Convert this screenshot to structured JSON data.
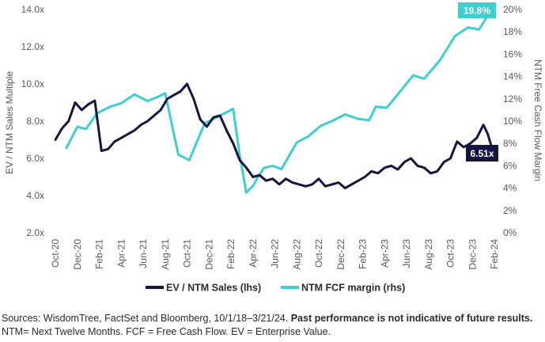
{
  "chart_data": {
    "type": "line",
    "ylabel_left": "EV / NTM Sales Multiple",
    "ylabel_right": "NTM Free Cash Flow Margin",
    "y_left": {
      "min": 2,
      "max": 14,
      "ticks": [
        "2.0x",
        "4.0x",
        "6.0x",
        "8.0x",
        "10.0x",
        "12.0x",
        "14.0x"
      ]
    },
    "y_right": {
      "min": 0,
      "max": 20,
      "ticks": [
        "0%",
        "2%",
        "4%",
        "6%",
        "8%",
        "10%",
        "12%",
        "14%",
        "16%",
        "18%",
        "20%"
      ]
    },
    "x_ticks": [
      "Oct-20",
      "Dec-20",
      "Feb-21",
      "Apr-21",
      "Jun-21",
      "Aug-21",
      "Oct-21",
      "Dec-21",
      "Feb-22",
      "Apr-22",
      "Jun-22",
      "Aug-22",
      "Oct-22",
      "Dec-22",
      "Feb-23",
      "Apr-23",
      "Jun-23",
      "Aug-23",
      "Oct-23",
      "Dec-23",
      "Feb-24"
    ],
    "colors": {
      "ev_sales": "#14163f",
      "fcf_margin": "#3ecfd2"
    },
    "series": [
      {
        "name": "EV / NTM Sales (lhs)",
        "axis": "left",
        "end_label": "6.51x",
        "x": [
          0,
          0.3,
          0.6,
          0.9,
          1.2,
          1.5,
          1.8,
          2.1,
          2.4,
          2.7,
          3.0,
          3.3,
          3.6,
          3.9,
          4.2,
          4.5,
          4.8,
          5.1,
          5.4,
          5.7,
          6.0,
          6.3,
          6.6,
          6.9,
          7.2,
          7.5,
          7.8,
          8.1,
          8.4,
          8.7,
          9.0,
          9.3,
          9.6,
          9.9,
          10.2,
          10.5,
          10.8,
          11.1,
          11.4,
          11.7,
          12.0,
          12.3,
          12.6,
          12.9,
          13.2,
          13.5,
          13.8,
          14.1,
          14.4,
          14.7,
          15.0,
          15.3,
          15.6,
          15.9,
          16.2,
          16.5,
          16.8,
          17.1,
          17.4,
          17.7,
          18.0,
          18.3,
          18.6,
          18.9,
          19.2,
          19.5,
          19.7,
          19.9
        ],
        "values": [
          7.0,
          7.6,
          8.0,
          9.0,
          8.6,
          8.9,
          9.1,
          6.4,
          6.5,
          6.9,
          7.1,
          7.3,
          7.5,
          7.8,
          8.0,
          8.3,
          8.6,
          9.2,
          9.4,
          9.6,
          10.0,
          9.2,
          8.1,
          7.7,
          8.2,
          8.3,
          7.5,
          6.8,
          5.9,
          5.5,
          5.0,
          5.1,
          4.8,
          4.9,
          4.6,
          4.9,
          4.7,
          4.6,
          4.5,
          4.6,
          4.9,
          4.5,
          4.6,
          4.7,
          4.4,
          4.6,
          4.8,
          5.0,
          5.3,
          5.2,
          5.5,
          5.6,
          5.4,
          5.8,
          6.0,
          5.6,
          5.5,
          5.2,
          5.3,
          5.8,
          6.0,
          6.9,
          6.6,
          6.8,
          7.1,
          7.8,
          7.3,
          6.51
        ]
      },
      {
        "name": "NTM FCF margin (rhs)",
        "axis": "right",
        "end_label": "19.8%",
        "x": [
          0.5,
          1.0,
          1.4,
          1.9,
          2.5,
          3.0,
          3.6,
          4.2,
          4.7,
          5.0,
          5.6,
          6.1,
          6.8,
          7.4,
          8.1,
          8.4,
          8.7,
          9.0,
          9.2,
          9.5,
          9.9,
          10.3,
          11.0,
          11.5,
          12.1,
          12.6,
          13.2,
          13.8,
          14.3,
          14.6,
          15.1,
          15.6,
          16.3,
          16.8,
          17.5,
          18.2,
          18.8,
          19.3,
          19.8
        ],
        "values": [
          7.6,
          9.5,
          9.3,
          10.7,
          11.3,
          11.6,
          12.4,
          11.8,
          12.2,
          12.5,
          7.0,
          6.5,
          9.8,
          10.4,
          11.1,
          6.9,
          3.6,
          4.2,
          4.9,
          5.8,
          6.0,
          5.7,
          8.1,
          8.6,
          9.6,
          10.0,
          10.6,
          10.2,
          10.1,
          11.3,
          11.2,
          12.4,
          14.1,
          13.8,
          15.4,
          17.6,
          18.4,
          18.2,
          19.8
        ]
      }
    ],
    "legend": {
      "placement": "bottom",
      "entries": [
        "EV / NTM Sales (lhs)",
        "NTM FCF margin (rhs)"
      ]
    }
  },
  "footer": {
    "line1": "Sources: WisdomTree, FactSet and Bloomberg, 10/1/18–3/21/24. ",
    "line1_bold": "Past performance is not indicative of future results.",
    "line2": "NTM= Next Twelve Months. FCF = Free Cash Flow. EV = Enterprise Value."
  }
}
